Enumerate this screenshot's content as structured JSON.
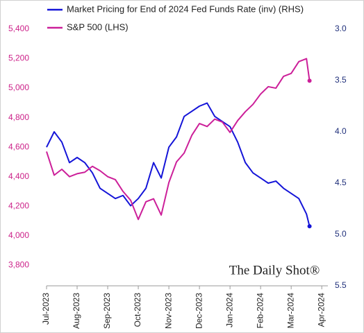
{
  "chart_data": {
    "type": "line",
    "x": [
      0,
      0.25,
      0.5,
      0.75,
      1,
      1.25,
      1.5,
      1.75,
      2,
      2.25,
      2.5,
      2.75,
      3,
      3.25,
      3.5,
      3.75,
      4,
      4.25,
      4.5,
      4.75,
      5,
      5.25,
      5.5,
      5.75,
      6,
      6.25,
      6.5,
      6.75,
      7,
      7.25,
      7.5,
      7.75,
      8,
      8.25,
      8.5,
      8.6
    ],
    "series": [
      {
        "name": "Market Pricing for End of 2024 Fed Funds Rate (inv) (RHS)",
        "color": "#1414d8",
        "axis": "y2",
        "values": [
          4.15,
          4.0,
          4.1,
          4.3,
          4.25,
          4.3,
          4.4,
          4.55,
          4.6,
          4.65,
          4.62,
          4.72,
          4.65,
          4.55,
          4.3,
          4.45,
          4.15,
          4.05,
          3.85,
          3.8,
          3.75,
          3.72,
          3.85,
          3.9,
          3.95,
          4.1,
          4.3,
          4.4,
          4.45,
          4.5,
          4.48,
          4.55,
          4.6,
          4.65,
          4.8,
          4.92
        ]
      },
      {
        "name": "S&P 500 (LHS)",
        "color": "#cc1f99",
        "axis": "y",
        "values": [
          4570,
          4410,
          4450,
          4400,
          4420,
          4430,
          4470,
          4440,
          4400,
          4380,
          4300,
          4240,
          4110,
          4230,
          4250,
          4140,
          4360,
          4500,
          4560,
          4680,
          4760,
          4740,
          4790,
          4770,
          4700,
          4780,
          4840,
          4890,
          4960,
          5010,
          5000,
          5080,
          5100,
          5180,
          5200,
          5050
        ]
      }
    ],
    "xlim": [
      0,
      9.2
    ],
    "xticks": [
      {
        "value": 0,
        "label": "Jul-2023"
      },
      {
        "value": 1,
        "label": "Aug-2023"
      },
      {
        "value": 2,
        "label": "Sep-2023"
      },
      {
        "value": 3,
        "label": "Oct-2023"
      },
      {
        "value": 4,
        "label": "Nov-2023"
      },
      {
        "value": 5,
        "label": "Dec-2023"
      },
      {
        "value": 6,
        "label": "Jan-2024"
      },
      {
        "value": 7,
        "label": "Feb-2024"
      },
      {
        "value": 8,
        "label": "Mar-2024"
      },
      {
        "value": 9,
        "label": "Apr-2024"
      }
    ],
    "ylim": [
      3660,
      5400
    ],
    "yticks": [
      {
        "value": 3800,
        "label": "3,800"
      },
      {
        "value": 4000,
        "label": "4,000"
      },
      {
        "value": 4200,
        "label": "4,200"
      },
      {
        "value": 4400,
        "label": "4,400"
      },
      {
        "value": 4600,
        "label": "4,600"
      },
      {
        "value": 4800,
        "label": "4,800"
      },
      {
        "value": 5000,
        "label": "5,000"
      },
      {
        "value": 5200,
        "label": "5,200"
      },
      {
        "value": 5400,
        "label": "5,400"
      }
    ],
    "y2lim": [
      3.0,
      5.5
    ],
    "y2_inverted": true,
    "y2ticks": [
      {
        "value": 3,
        "label": "3.0"
      },
      3.5,
      {
        "value": 4,
        "label": "4.0"
      },
      4.5,
      {
        "value": 5,
        "label": "5.0"
      },
      5.5
    ],
    "yaxis_color": "#cc1f88",
    "y2axis_color": "#1f2f7a",
    "annotation": "The Daily Shot®",
    "legend": "upper left",
    "grid": false
  }
}
